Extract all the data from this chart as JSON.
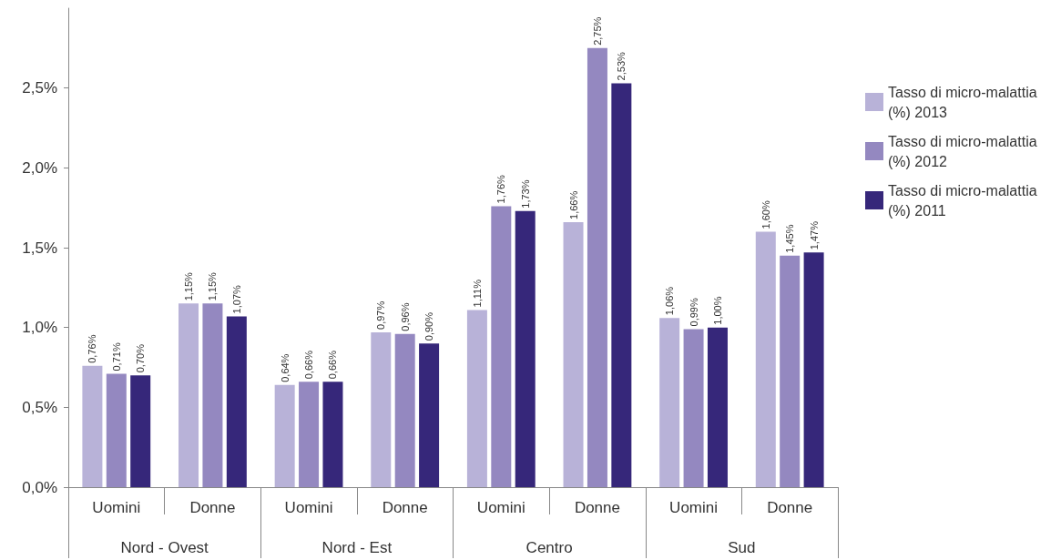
{
  "chart_data": {
    "type": "bar",
    "categories": [
      "Uomini",
      "Donne",
      "Uomini",
      "Donne",
      "Uomini",
      "Donne",
      "Uomini",
      "Donne"
    ],
    "annotations": [
      "Nord - Ovest",
      "Nord - Est",
      "Centro",
      "Sud"
    ],
    "series": [
      {
        "name": "Tasso di micro-malattia (%) 2013",
        "color": "#b8b2d8",
        "values": [
          0.76,
          1.15,
          0.64,
          0.97,
          1.11,
          1.66,
          1.06,
          1.6
        ],
        "value_labels": [
          "0,76%",
          "1,15%",
          "0,64%",
          "0,97%",
          "1,11%",
          "1,66%",
          "1,06%",
          "1,60%"
        ]
      },
      {
        "name": "Tasso di micro-malattia (%) 2012",
        "color": "#9488c0",
        "values": [
          0.71,
          1.15,
          0.66,
          0.96,
          1.76,
          2.75,
          0.99,
          1.45
        ],
        "value_labels": [
          "0,71%",
          "1,15%",
          "0,66%",
          "0,96%",
          "1,76%",
          "2,75%",
          "0,99%",
          "1,45%"
        ]
      },
      {
        "name": "Tasso di micro-malattia (%) 2011",
        "color": "#36277a",
        "values": [
          0.7,
          1.07,
          0.66,
          0.9,
          1.73,
          2.53,
          1.0,
          1.47
        ],
        "value_labels": [
          "0,70%",
          "1,07%",
          "0,66%",
          "0,90%",
          "1,73%",
          "2,53%",
          "1,00%",
          "1,47%"
        ]
      }
    ],
    "ylim": [
      0,
      3.0
    ],
    "yticks": [
      {
        "value": 0,
        "label": "0,0%"
      },
      {
        "value": 0.5,
        "label": "0,5%"
      },
      {
        "value": 1.0,
        "label": "1,0%"
      },
      {
        "value": 1.5,
        "label": "1,5%"
      },
      {
        "value": 2.0,
        "label": "2,0%"
      },
      {
        "value": 2.5,
        "label": "2,5%"
      }
    ],
    "grid": false,
    "legend": "top right"
  }
}
